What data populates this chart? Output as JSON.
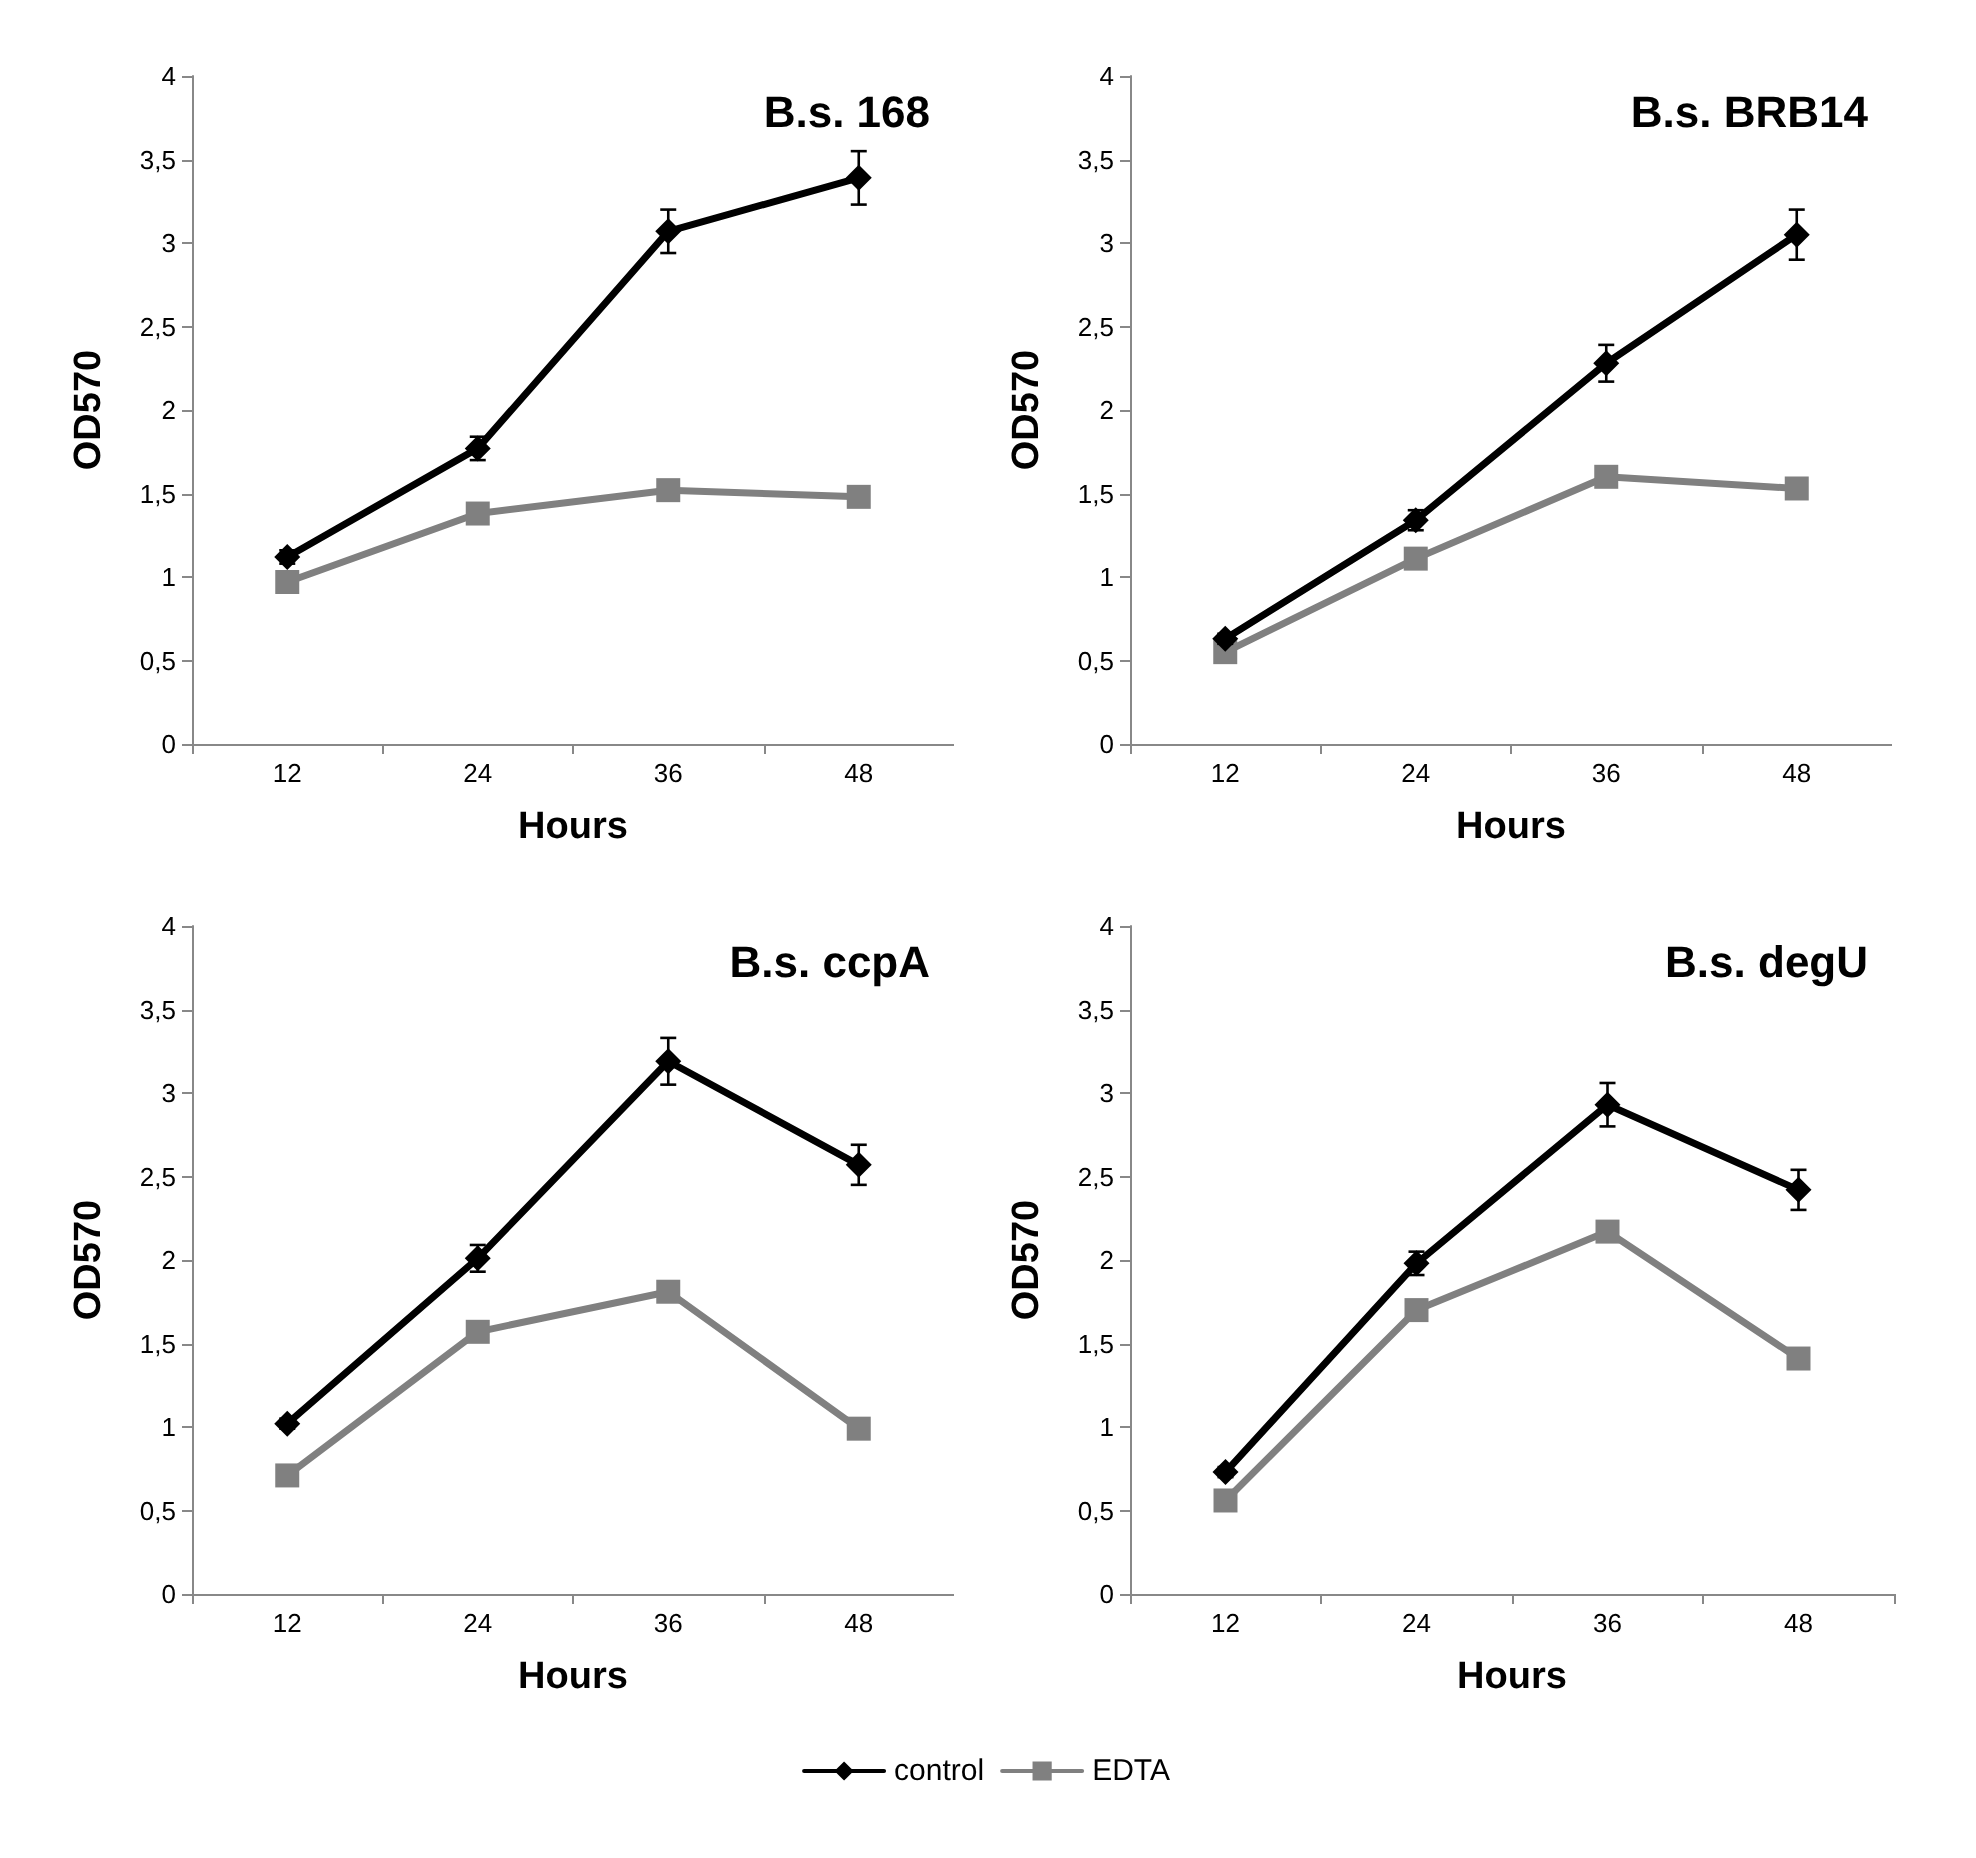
{
  "chart_data": [
    {
      "type": "line",
      "title": "B.s. 168",
      "xlabel": "Hours",
      "ylabel": "OD570",
      "categories": [
        "12",
        "24",
        "36",
        "48"
      ],
      "ylim": [
        0,
        4
      ],
      "yticks": [
        0,
        {
          "value": 0.5,
          "label": "0,5"
        },
        1,
        {
          "value": 1.5,
          "label": "1,5"
        },
        2,
        {
          "value": 2.5,
          "label": "2,5"
        },
        3,
        {
          "value": 3.5,
          "label": "3,5"
        },
        4
      ],
      "grid": false,
      "series": [
        {
          "color": "#000000",
          "marker": "diamond",
          "values": [
            1.12,
            1.77,
            3.07,
            3.39
          ],
          "errors": [
            0.04,
            0.07,
            0.13,
            0.16
          ]
        },
        {
          "color": "#808080",
          "marker": "square",
          "values": [
            0.97,
            1.38,
            1.52,
            1.48
          ]
        }
      ]
    },
    {
      "type": "line",
      "title": "B.s. BRB14",
      "xlabel": "Hours",
      "ylabel": "OD570",
      "categories": [
        "12",
        "24",
        "36",
        "48"
      ],
      "ylim": [
        0,
        4
      ],
      "yticks": [
        0,
        {
          "value": 0.5,
          "label": "0,5"
        },
        1,
        {
          "value": 1.5,
          "label": "1,5"
        },
        2,
        {
          "value": 2.5,
          "label": "2,5"
        },
        3,
        {
          "value": 3.5,
          "label": "3,5"
        },
        4
      ],
      "grid": false,
      "series": [
        {
          "color": "#000000",
          "marker": "diamond",
          "values": [
            0.63,
            1.34,
            2.28,
            3.05
          ],
          "errors": [
            0.03,
            0.06,
            0.11,
            0.15
          ]
        },
        {
          "color": "#808080",
          "marker": "square",
          "values": [
            0.55,
            1.11,
            1.6,
            1.53
          ]
        }
      ]
    },
    {
      "type": "line",
      "title": "B.s. ccpA",
      "xlabel": "Hours",
      "ylabel": "OD570",
      "categories": [
        "12",
        "24",
        "36",
        "48"
      ],
      "ylim": [
        0,
        4
      ],
      "yticks": [
        0,
        {
          "value": 0.5,
          "label": "0,5"
        },
        1,
        {
          "value": 1.5,
          "label": "1,5"
        },
        2,
        {
          "value": 2.5,
          "label": "2,5"
        },
        3,
        {
          "value": 3.5,
          "label": "3,5"
        },
        4
      ],
      "grid": false,
      "series": [
        {
          "color": "#000000",
          "marker": "diamond",
          "values": [
            1.02,
            2.01,
            3.19,
            2.57
          ],
          "errors": [
            0.03,
            0.08,
            0.14,
            0.12
          ]
        },
        {
          "color": "#808080",
          "marker": "square",
          "values": [
            0.71,
            1.57,
            1.81,
            0.99
          ]
        }
      ]
    },
    {
      "type": "line",
      "title": "B.s. degU",
      "xlabel": "Hours",
      "ylabel": "OD570",
      "categories": [
        "12",
        "24",
        "36",
        "48"
      ],
      "ylim": [
        0,
        4
      ],
      "yticks": [
        0,
        {
          "value": 0.5,
          "label": "0,5"
        },
        1,
        {
          "value": 1.5,
          "label": "1,5"
        },
        2,
        {
          "value": 2.5,
          "label": "2,5"
        },
        3,
        {
          "value": 3.5,
          "label": "3,5"
        },
        4
      ],
      "grid": false,
      "legend": "bottom",
      "series": [
        {
          "name": "control",
          "color": "#000000",
          "marker": "diamond",
          "values": [
            0.73,
            1.98,
            2.93,
            2.42
          ],
          "errors": [
            0.03,
            0.07,
            0.13,
            0.12
          ]
        },
        {
          "name": "EDTA",
          "color": "#808080",
          "marker": "square",
          "values": [
            0.56,
            1.7,
            2.17,
            1.41
          ]
        }
      ]
    }
  ]
}
